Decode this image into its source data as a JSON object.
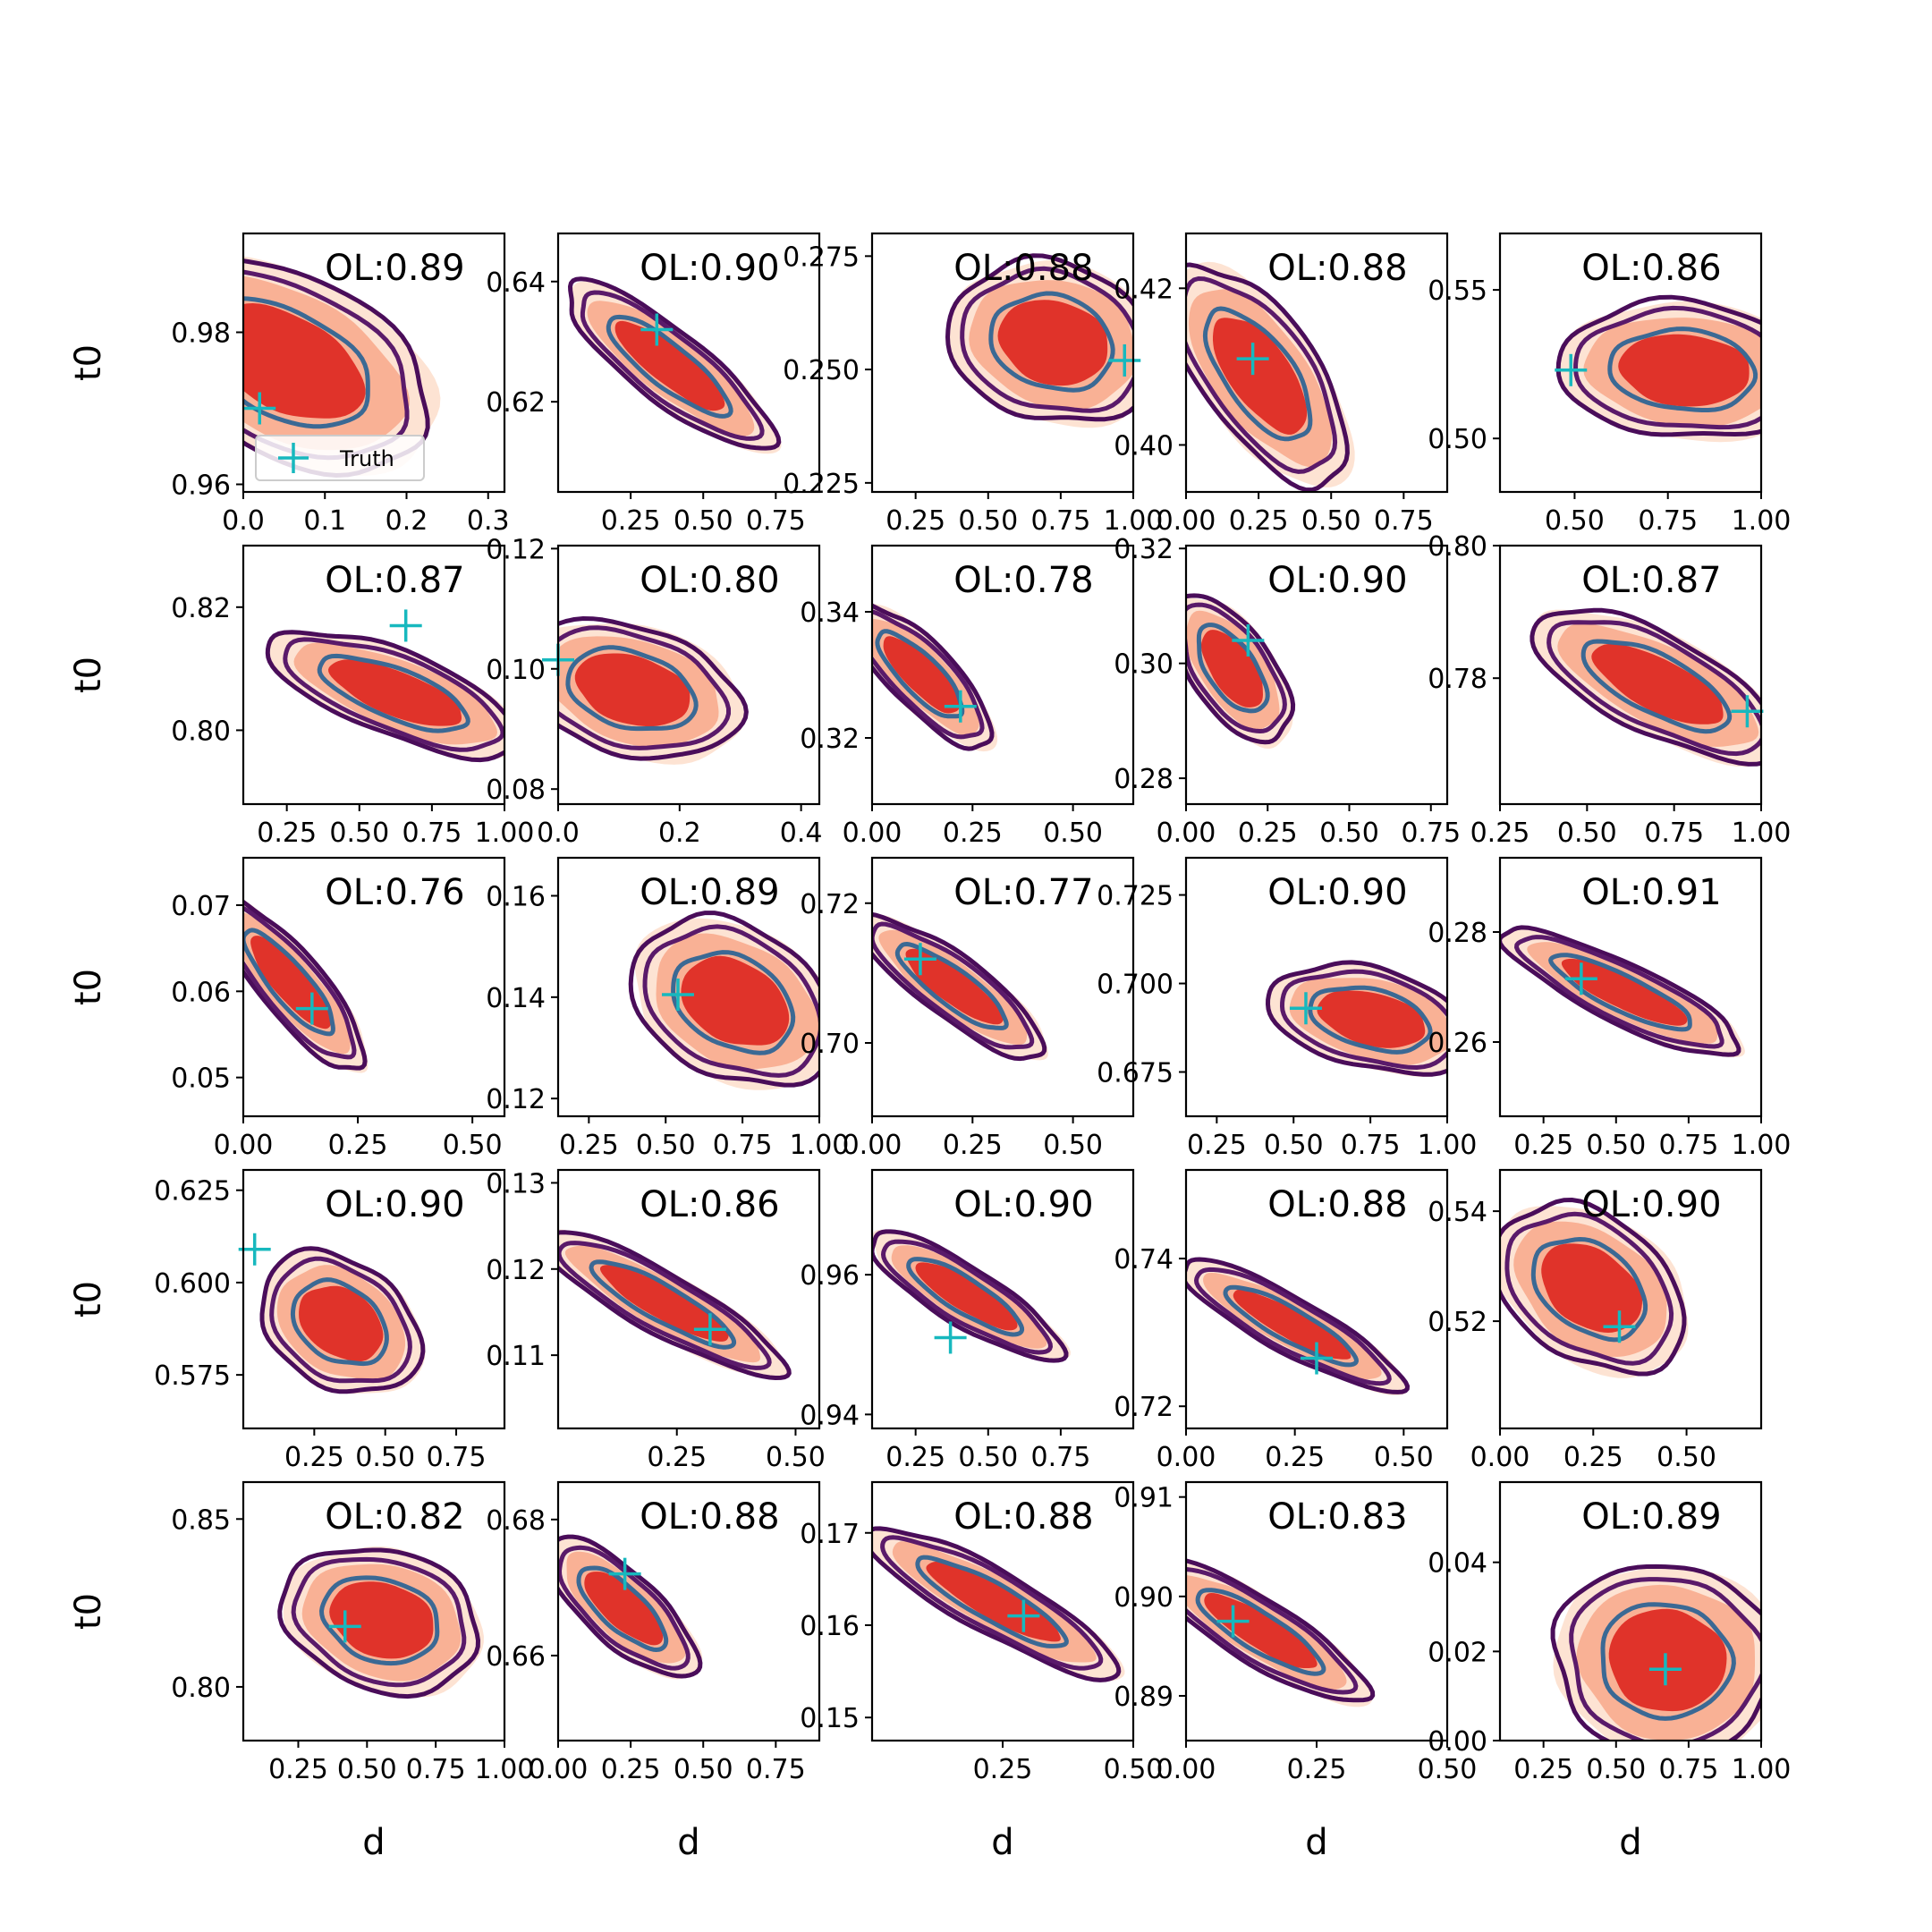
{
  "chart_data": {
    "type": "grid-of-2d-kde-contour-plots",
    "rows": 5,
    "cols": 5,
    "xlabel": "d",
    "ylabel": "t0",
    "legend": {
      "label": "Truth",
      "placement": "lower-left of first panel",
      "marker": "plus"
    },
    "colors": {
      "truth_marker": "#17b8be",
      "fill_light": "#fde3d3",
      "fill_mid": "#f9b195",
      "fill_dark": "#e0332a",
      "contour_outer": "#4a0d5a",
      "contour_mid": "#5a1a6a",
      "contour_inner": "#3b6994"
    },
    "panels": [
      {
        "ol": "OL:0.89",
        "xlim": [
          0,
          0.32
        ],
        "ylim": [
          0.959,
          0.993
        ],
        "xticks": [
          0,
          0.1,
          0.2,
          0.3
        ],
        "xtick_labels": [
          "0.0",
          "0.1",
          "0.2",
          "0.3"
        ],
        "yticks": [
          0.96,
          0.98
        ],
        "ytick_labels": [
          "0.96",
          "0.98"
        ],
        "center": [
          0.05,
          0.976
        ],
        "spread": [
          0.07,
          0.0056
        ],
        "rho": -0.45,
        "truth": [
          0.02,
          0.97
        ],
        "legend": true
      },
      {
        "ol": "OL:0.90",
        "xlim": [
          0,
          0.9
        ],
        "ylim": [
          0.605,
          0.648
        ],
        "xticks": [
          0.25,
          0.5,
          0.75
        ],
        "xtick_labels": [
          "0.25",
          "0.50",
          "0.75"
        ],
        "yticks": [
          0.62,
          0.64
        ],
        "ytick_labels": [
          "0.62",
          "0.64"
        ],
        "center": [
          0.38,
          0.626
        ],
        "spread": [
          0.14,
          0.0055
        ],
        "rho": -0.85,
        "truth": [
          0.34,
          0.632
        ]
      },
      {
        "ol": "OL:0.88",
        "xlim": [
          0.1,
          1.0
        ],
        "ylim": [
          0.223,
          0.28
        ],
        "xticks": [
          0.25,
          0.5,
          0.75,
          1.0
        ],
        "xtick_labels": [
          "0.25",
          "0.50",
          "0.75",
          "1.00"
        ],
        "yticks": [
          0.225,
          0.25,
          0.275
        ],
        "ytick_labels": [
          "0.225",
          "0.250",
          "0.275"
        ],
        "center": [
          0.72,
          0.256
        ],
        "spread": [
          0.14,
          0.007
        ],
        "rho": -0.15,
        "truth": [
          0.97,
          0.252
        ]
      },
      {
        "ol": "OL:0.88",
        "xlim": [
          0,
          0.9
        ],
        "ylim": [
          0.394,
          0.427
        ],
        "xticks": [
          0,
          0.25,
          0.5,
          0.75
        ],
        "xtick_labels": [
          "0.00",
          "0.25",
          "0.50",
          "0.75"
        ],
        "yticks": [
          0.4,
          0.42
        ],
        "ytick_labels": [
          "0.40",
          "0.42"
        ],
        "center": [
          0.25,
          0.409
        ],
        "spread": [
          0.12,
          0.0055
        ],
        "rho": -0.65,
        "truth": [
          0.23,
          0.411
        ]
      },
      {
        "ol": "OL:0.86",
        "xlim": [
          0.3,
          1.0
        ],
        "ylim": [
          0.482,
          0.569
        ],
        "xticks": [
          0.5,
          0.75,
          1.0
        ],
        "xtick_labels": [
          "0.50",
          "0.75",
          "1.00"
        ],
        "yticks": [
          0.5,
          0.55
        ],
        "ytick_labels": [
          "0.50",
          "0.55"
        ],
        "center": [
          0.79,
          0.523
        ],
        "spread": [
          0.13,
          0.009
        ],
        "rho": -0.1,
        "truth": [
          0.49,
          0.523
        ]
      },
      {
        "ol": "OL:0.87",
        "xlim": [
          0.1,
          1.0
        ],
        "ylim": [
          0.788,
          0.83
        ],
        "xticks": [
          0.25,
          0.5,
          0.75,
          1.0
        ],
        "xtick_labels": [
          "0.25",
          "0.50",
          "0.75",
          "1.00"
        ],
        "yticks": [
          0.8,
          0.82
        ],
        "ytick_labels": [
          "0.80",
          "0.82"
        ],
        "center": [
          0.62,
          0.806
        ],
        "spread": [
          0.17,
          0.004
        ],
        "rho": -0.7,
        "truth": [
          0.66,
          0.817
        ]
      },
      {
        "ol": "OL:0.80",
        "xlim": [
          0,
          0.43
        ],
        "ylim": [
          0.0775,
          0.1205
        ],
        "xticks": [
          0,
          0.2,
          0.4
        ],
        "xtick_labels": [
          "0.0",
          "0.2",
          "0.4"
        ],
        "yticks": [
          0.08,
          0.1,
          0.12
        ],
        "ytick_labels": [
          "0.08",
          "0.10",
          "0.12"
        ],
        "center": [
          0.12,
          0.0965
        ],
        "spread": [
          0.07,
          0.0045
        ],
        "rho": -0.3,
        "truth": [
          0.0,
          0.1015
        ]
      },
      {
        "ol": "OL:0.78",
        "xlim": [
          0,
          0.65
        ],
        "ylim": [
          0.3095,
          0.3505
        ],
        "xticks": [
          0,
          0.25,
          0.5
        ],
        "xtick_labels": [
          "0.00",
          "0.25",
          "0.50"
        ],
        "yticks": [
          0.32,
          0.34
        ],
        "ytick_labels": [
          "0.32",
          "0.34"
        ],
        "center": [
          0.12,
          0.33
        ],
        "spread": [
          0.07,
          0.0045
        ],
        "rho": -0.8,
        "truth": [
          0.22,
          0.325
        ]
      },
      {
        "ol": "OL:0.90",
        "xlim": [
          0,
          0.8
        ],
        "ylim": [
          0.2755,
          0.3205
        ],
        "xticks": [
          0,
          0.25,
          0.5,
          0.75
        ],
        "xtick_labels": [
          "0.00",
          "0.25",
          "0.50",
          "0.75"
        ],
        "yticks": [
          0.28,
          0.3,
          0.32
        ],
        "ytick_labels": [
          "0.28",
          "0.30",
          "0.32"
        ],
        "center": [
          0.14,
          0.299
        ],
        "spread": [
          0.07,
          0.005
        ],
        "rho": -0.6,
        "truth": [
          0.19,
          0.304
        ]
      },
      {
        "ol": "OL:0.87",
        "xlim": [
          0.25,
          1.0
        ],
        "ylim": [
          0.761,
          0.8
        ],
        "xticks": [
          0.25,
          0.5,
          0.75,
          1.0
        ],
        "xtick_labels": [
          "0.25",
          "0.50",
          "0.75",
          "1.00"
        ],
        "yticks": [
          0.78,
          0.8
        ],
        "ytick_labels": [
          "0.78",
          "0.80"
        ],
        "center": [
          0.7,
          0.779
        ],
        "spread": [
          0.14,
          0.0045
        ],
        "rho": -0.7,
        "truth": [
          0.96,
          0.775
        ]
      },
      {
        "ol": "OL:0.76",
        "xlim": [
          0,
          0.57
        ],
        "ylim": [
          0.0455,
          0.0755
        ],
        "xticks": [
          0,
          0.25,
          0.5
        ],
        "xtick_labels": [
          "0.00",
          "0.25",
          "0.50"
        ],
        "yticks": [
          0.05,
          0.06,
          0.07
        ],
        "ytick_labels": [
          "0.05",
          "0.06",
          "0.07"
        ],
        "center": [
          0.1,
          0.061
        ],
        "spread": [
          0.065,
          0.004
        ],
        "rho": -0.85,
        "truth": [
          0.15,
          0.058
        ]
      },
      {
        "ol": "OL:0.89",
        "xlim": [
          0.15,
          1.0
        ],
        "ylim": [
          0.1165,
          0.1675
        ],
        "xticks": [
          0.25,
          0.5,
          0.75,
          1.0
        ],
        "xtick_labels": [
          "0.25",
          "0.50",
          "0.75",
          "1.00"
        ],
        "yticks": [
          0.12,
          0.14,
          0.16
        ],
        "ytick_labels": [
          "0.12",
          "0.14",
          "0.16"
        ],
        "center": [
          0.72,
          0.139
        ],
        "spread": [
          0.13,
          0.0065
        ],
        "rho": -0.3,
        "truth": [
          0.54,
          0.1405
        ]
      },
      {
        "ol": "OL:0.77",
        "xlim": [
          0,
          0.65
        ],
        "ylim": [
          0.6895,
          0.7265
        ],
        "xticks": [
          0,
          0.25,
          0.5
        ],
        "xtick_labels": [
          "0.00",
          "0.25",
          "0.50"
        ],
        "yticks": [
          0.7,
          0.72
        ],
        "ytick_labels": [
          "0.70",
          "0.72"
        ],
        "center": [
          0.2,
          0.708
        ],
        "spread": [
          0.09,
          0.004
        ],
        "rho": -0.85,
        "truth": [
          0.12,
          0.712
        ]
      },
      {
        "ol": "OL:0.90",
        "xlim": [
          0.15,
          1.0
        ],
        "ylim": [
          0.6625,
          0.7355
        ],
        "xticks": [
          0.25,
          0.5,
          0.75,
          1.0
        ],
        "xtick_labels": [
          "0.25",
          "0.50",
          "0.75",
          "1.00"
        ],
        "yticks": [
          0.675,
          0.7,
          0.725
        ],
        "ytick_labels": [
          "0.675",
          "0.700",
          "0.725"
        ],
        "center": [
          0.75,
          0.69
        ],
        "spread": [
          0.13,
          0.006
        ],
        "rho": -0.35,
        "truth": [
          0.54,
          0.693
        ]
      },
      {
        "ol": "OL:0.91",
        "xlim": [
          0.1,
          1.0
        ],
        "ylim": [
          0.2465,
          0.2935
        ],
        "xticks": [
          0.25,
          0.5,
          0.75,
          1.0
        ],
        "xtick_labels": [
          "0.25",
          "0.50",
          "0.75",
          "1.00"
        ],
        "yticks": [
          0.26,
          0.28
        ],
        "ytick_labels": [
          "0.26",
          "0.28"
        ],
        "center": [
          0.52,
          0.269
        ],
        "spread": [
          0.16,
          0.0045
        ],
        "rho": -0.85,
        "truth": [
          0.38,
          0.2715
        ]
      },
      {
        "ol": "OL:0.90",
        "xlim": [
          0,
          0.92
        ],
        "ylim": [
          0.5605,
          0.6305
        ],
        "xticks": [
          0.25,
          0.5,
          0.75
        ],
        "xtick_labels": [
          "0.25",
          "0.50",
          "0.75"
        ],
        "yticks": [
          0.575,
          0.6,
          0.625
        ],
        "ytick_labels": [
          "0.575",
          "0.600",
          "0.625"
        ],
        "center": [
          0.34,
          0.589
        ],
        "spread": [
          0.11,
          0.0075
        ],
        "rho": -0.3,
        "truth": [
          0.04,
          0.609
        ]
      },
      {
        "ol": "OL:0.86",
        "xlim": [
          0,
          0.55
        ],
        "ylim": [
          0.1015,
          0.1315
        ],
        "xticks": [
          0.25,
          0.5
        ],
        "xtick_labels": [
          "0.25",
          "0.50"
        ],
        "yticks": [
          0.11,
          0.12,
          0.13
        ],
        "ytick_labels": [
          "0.11",
          "0.12",
          "0.13"
        ],
        "center": [
          0.22,
          0.116
        ],
        "spread": [
          0.1,
          0.0033
        ],
        "rho": -0.88,
        "truth": [
          0.32,
          0.113
        ]
      },
      {
        "ol": "OL:0.90",
        "xlim": [
          0.1,
          1.0
        ],
        "ylim": [
          0.938,
          0.975
        ],
        "xticks": [
          0.25,
          0.5,
          0.75
        ],
        "xtick_labels": [
          "0.25",
          "0.50",
          "0.75"
        ],
        "yticks": [
          0.94,
          0.96
        ],
        "ytick_labels": [
          "0.94",
          "0.96"
        ],
        "center": [
          0.42,
          0.957
        ],
        "spread": [
          0.13,
          0.0036
        ],
        "rho": -0.85,
        "truth": [
          0.37,
          0.951
        ]
      },
      {
        "ol": "OL:0.88",
        "xlim": [
          0,
          0.6
        ],
        "ylim": [
          0.717,
          0.752
        ],
        "xticks": [
          0,
          0.25,
          0.5
        ],
        "xtick_labels": [
          "0.00",
          "0.25",
          "0.50"
        ],
        "yticks": [
          0.72,
          0.74
        ],
        "ytick_labels": [
          "0.72",
          "0.74"
        ],
        "center": [
          0.24,
          0.731
        ],
        "spread": [
          0.1,
          0.0035
        ],
        "rho": -0.88,
        "truth": [
          0.3,
          0.7265
        ]
      },
      {
        "ol": "OL:0.90",
        "xlim": [
          0,
          0.7
        ],
        "ylim": [
          0.5005,
          0.5475
        ],
        "xticks": [
          0,
          0.25,
          0.5
        ],
        "xtick_labels": [
          "0.00",
          "0.25",
          "0.50"
        ],
        "yticks": [
          0.52,
          0.54
        ],
        "ytick_labels": [
          "0.52",
          "0.54"
        ],
        "center": [
          0.24,
          0.526
        ],
        "spread": [
          0.1,
          0.006
        ],
        "rho": -0.35,
        "truth": [
          0.32,
          0.519
        ]
      },
      {
        "ol": "OL:0.82",
        "xlim": [
          0.05,
          1.0
        ],
        "ylim": [
          0.784,
          0.861
        ],
        "xticks": [
          0.25,
          0.5,
          0.75,
          1.0
        ],
        "xtick_labels": [
          "0.25",
          "0.50",
          "0.75",
          "1.00"
        ],
        "yticks": [
          0.8,
          0.85
        ],
        "ytick_labels": [
          "0.80",
          "0.85"
        ],
        "center": [
          0.55,
          0.82
        ],
        "spread": [
          0.14,
          0.0085
        ],
        "rho": -0.2,
        "truth": [
          0.42,
          0.818
        ]
      },
      {
        "ol": "OL:0.88",
        "xlim": [
          0,
          0.9
        ],
        "ylim": [
          0.6475,
          0.6855
        ],
        "xticks": [
          0,
          0.25,
          0.5,
          0.75
        ],
        "xtick_labels": [
          "0.00",
          "0.25",
          "0.50",
          "0.75"
        ],
        "yticks": [
          0.66,
          0.68
        ],
        "ytick_labels": [
          "0.66",
          "0.68"
        ],
        "center": [
          0.22,
          0.667
        ],
        "spread": [
          0.1,
          0.004
        ],
        "rho": -0.75,
        "truth": [
          0.23,
          0.672
        ]
      },
      {
        "ol": "OL:0.88",
        "xlim": [
          0,
          0.5
        ],
        "ylim": [
          0.1475,
          0.1755
        ],
        "xticks": [
          0.25,
          0.5
        ],
        "xtick_labels": [
          "0.25",
          "0.50"
        ],
        "yticks": [
          0.15,
          0.16,
          0.17
        ],
        "ytick_labels": [
          "0.15",
          "0.16",
          "0.17"
        ],
        "center": [
          0.23,
          0.1625
        ],
        "spread": [
          0.095,
          0.0032
        ],
        "rho": -0.88,
        "truth": [
          0.29,
          0.161
        ]
      },
      {
        "ol": "OL:0.83",
        "xlim": [
          0,
          0.5
        ],
        "ylim": [
          0.8855,
          0.9115
        ],
        "xticks": [
          0,
          0.25,
          0.5
        ],
        "xtick_labels": [
          "0.00",
          "0.25",
          "0.50"
        ],
        "yticks": [
          0.89,
          0.9,
          0.91
        ],
        "ytick_labels": [
          "0.89",
          "0.90",
          "0.91"
        ],
        "center": [
          0.14,
          0.8965
        ],
        "spread": [
          0.08,
          0.0028
        ],
        "rho": -0.85,
        "truth": [
          0.09,
          0.8975
        ]
      },
      {
        "ol": "OL:0.89",
        "xlim": [
          0.1,
          1.0
        ],
        "ylim": [
          0.0,
          0.058
        ],
        "xticks": [
          0.25,
          0.5,
          0.75,
          1.0
        ],
        "xtick_labels": [
          "0.25",
          "0.50",
          "0.75",
          "1.00"
        ],
        "yticks": [
          0,
          0.02,
          0.04
        ],
        "ytick_labels": [
          "0.00",
          "0.02",
          "0.04"
        ],
        "center": [
          0.67,
          0.018
        ],
        "spread": [
          0.15,
          0.0085
        ],
        "rho": -0.05,
        "truth": [
          0.67,
          0.016
        ]
      }
    ]
  }
}
